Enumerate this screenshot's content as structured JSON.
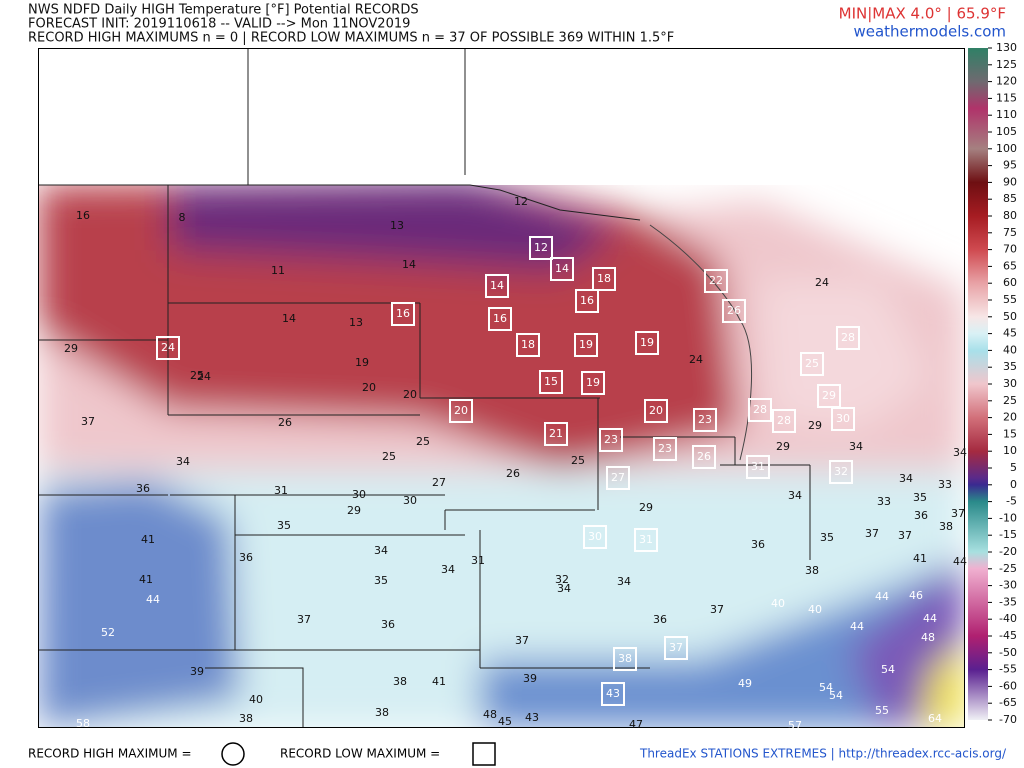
{
  "header": {
    "title_lines": [
      "NWS NDFD Daily HIGH Temperature [°F] Potential RECORDS",
      "FORECAST INIT: 2019110618 -- VALID --> Mon 11NOV2019",
      "RECORD HIGH MAXIMUMS n = 0 | RECORD LOW MAXIMUMS n = 37 OF POSSIBLE 369 WITHIN 1.5°F"
    ],
    "minmax": "MIN|MAX 4.0° | 65.9°F",
    "site": "weathermodels.com"
  },
  "colorbar": {
    "ticks": [
      130,
      125,
      120,
      115,
      110,
      105,
      100,
      95,
      90,
      85,
      80,
      75,
      70,
      65,
      60,
      55,
      50,
      45,
      40,
      35,
      30,
      25,
      20,
      15,
      10,
      5,
      0,
      -5,
      -10,
      -15,
      -20,
      -25,
      -30,
      -35,
      -40,
      -45,
      -50,
      -55,
      -60,
      -65,
      -70
    ]
  },
  "stations": [
    {
      "value": 16,
      "record_low": false
    },
    {
      "value": 8,
      "record_low": false
    },
    {
      "value": 13,
      "record_low": false
    },
    {
      "value": 12,
      "record_low": false
    },
    {
      "value": 12,
      "record_low": true
    },
    {
      "value": 14,
      "record_low": true
    },
    {
      "value": 18,
      "record_low": true
    },
    {
      "value": 22,
      "record_low": true
    },
    {
      "value": 14,
      "record_low": false
    },
    {
      "value": 11,
      "record_low": false
    },
    {
      "value": 14,
      "record_low": true
    },
    {
      "value": 16,
      "record_low": true
    },
    {
      "value": 26,
      "record_low": true
    },
    {
      "value": 24,
      "record_low": false
    },
    {
      "value": 14,
      "record_low": false
    },
    {
      "value": 13,
      "record_low": false
    },
    {
      "value": 16,
      "record_low": true
    },
    {
      "value": 16,
      "record_low": true
    },
    {
      "value": 28,
      "record_low": true
    },
    {
      "value": 29,
      "record_low": false
    },
    {
      "value": 24,
      "record_low": true
    },
    {
      "value": 18,
      "record_low": true
    },
    {
      "value": 19,
      "record_low": true
    },
    {
      "value": 19,
      "record_low": true
    },
    {
      "value": 19,
      "record_low": false
    },
    {
      "value": 24,
      "record_low": false
    },
    {
      "value": 25,
      "record_low": true
    },
    {
      "value": 25,
      "record_low": false
    },
    {
      "value": 24,
      "record_low": false
    },
    {
      "value": 20,
      "record_low": false
    },
    {
      "value": 15,
      "record_low": true
    },
    {
      "value": 19,
      "record_low": true
    },
    {
      "value": 20,
      "record_low": false
    },
    {
      "value": 29,
      "record_low": true
    },
    {
      "value": 20,
      "record_low": true
    },
    {
      "value": 20,
      "record_low": true
    },
    {
      "value": 28,
      "record_low": true
    },
    {
      "value": 23,
      "record_low": true
    },
    {
      "value": 28,
      "record_low": true
    },
    {
      "value": 29,
      "record_low": false
    },
    {
      "value": 30,
      "record_low": true
    },
    {
      "value": 37,
      "record_low": false
    },
    {
      "value": 26,
      "record_low": false
    },
    {
      "value": 21,
      "record_low": true
    },
    {
      "value": 23,
      "record_low": true
    },
    {
      "value": 23,
      "record_low": true
    },
    {
      "value": 29,
      "record_low": false
    },
    {
      "value": 34,
      "record_low": false
    },
    {
      "value": 25,
      "record_low": false
    },
    {
      "value": 25,
      "record_low": false
    },
    {
      "value": 25,
      "record_low": false
    },
    {
      "value": 26,
      "record_low": true
    },
    {
      "value": 31,
      "record_low": true
    },
    {
      "value": 32,
      "record_low": true
    },
    {
      "value": 34,
      "record_low": false
    },
    {
      "value": 34,
      "record_low": false
    },
    {
      "value": 26,
      "record_low": false
    },
    {
      "value": 27,
      "record_low": true
    },
    {
      "value": 27,
      "record_low": false
    },
    {
      "value": 34,
      "record_low": false
    },
    {
      "value": 33,
      "record_low": false
    },
    {
      "value": 36,
      "record_low": false
    },
    {
      "value": 31,
      "record_low": false
    },
    {
      "value": 30,
      "record_low": false
    },
    {
      "value": 29,
      "record_low": false
    },
    {
      "value": 30,
      "record_low": false
    },
    {
      "value": 34,
      "record_low": false
    },
    {
      "value": 33,
      "record_low": false
    },
    {
      "value": 35,
      "record_low": false
    },
    {
      "value": 29,
      "record_low": false
    },
    {
      "value": 36,
      "record_low": false
    },
    {
      "value": 37,
      "record_low": false
    },
    {
      "value": 38,
      "record_low": false
    },
    {
      "value": 35,
      "record_low": false
    },
    {
      "value": 41,
      "record_low": false
    },
    {
      "value": 30,
      "record_low": true
    },
    {
      "value": 31,
      "record_low": true
    },
    {
      "value": 35,
      "record_low": false
    },
    {
      "value": 37,
      "record_low": false
    },
    {
      "value": 37,
      "record_low": false
    },
    {
      "value": 36,
      "record_low": false
    },
    {
      "value": 36,
      "record_low": false
    },
    {
      "value": 34,
      "record_low": false
    },
    {
      "value": 31,
      "record_low": false
    },
    {
      "value": 41,
      "record_low": false
    },
    {
      "value": 44,
      "record_low": false
    },
    {
      "value": 34,
      "record_low": false
    },
    {
      "value": 38,
      "record_low": false
    },
    {
      "value": 41,
      "record_low": false
    },
    {
      "value": 35,
      "record_low": false
    },
    {
      "value": 32,
      "record_low": false
    },
    {
      "value": 34,
      "record_low": false
    },
    {
      "value": 34,
      "record_low": false
    },
    {
      "value": 44,
      "record_low": false
    },
    {
      "value": 44,
      "record_low": false
    },
    {
      "value": 46,
      "record_low": false
    },
    {
      "value": 40,
      "record_low": false
    },
    {
      "value": 40,
      "record_low": false
    },
    {
      "value": 37,
      "record_low": false
    },
    {
      "value": 37,
      "record_low": false
    },
    {
      "value": 36,
      "record_low": false
    },
    {
      "value": 36,
      "record_low": false
    },
    {
      "value": 44,
      "record_low": false
    },
    {
      "value": 44,
      "record_low": false
    },
    {
      "value": 52,
      "record_low": false
    },
    {
      "value": 48,
      "record_low": false
    },
    {
      "value": 37,
      "record_low": false
    },
    {
      "value": 37,
      "record_low": true
    },
    {
      "value": 38,
      "record_low": true
    },
    {
      "value": 39,
      "record_low": false
    },
    {
      "value": 54,
      "record_low": false
    },
    {
      "value": 38,
      "record_low": false
    },
    {
      "value": 41,
      "record_low": false
    },
    {
      "value": 39,
      "record_low": false
    },
    {
      "value": 49,
      "record_low": false
    },
    {
      "value": 54,
      "record_low": false
    },
    {
      "value": 54,
      "record_low": false
    },
    {
      "value": 43,
      "record_low": true
    },
    {
      "value": 40,
      "record_low": false
    },
    {
      "value": 38,
      "record_low": false
    },
    {
      "value": 38,
      "record_low": false
    },
    {
      "value": 48,
      "record_low": false
    },
    {
      "value": 45,
      "record_low": false
    },
    {
      "value": 43,
      "record_low": false
    },
    {
      "value": 55,
      "record_low": false
    },
    {
      "value": 58,
      "record_low": false
    },
    {
      "value": 47,
      "record_low": false
    },
    {
      "value": 57,
      "record_low": false
    },
    {
      "value": 64,
      "record_low": false
    }
  ],
  "legend": {
    "record_high": "RECORD HIGH MAXIMUM =",
    "record_low": "RECORD LOW MAXIMUM ="
  },
  "footer": "ThreadEx STATIONS EXTREMES | http://threadex.rcc-acis.org/"
}
